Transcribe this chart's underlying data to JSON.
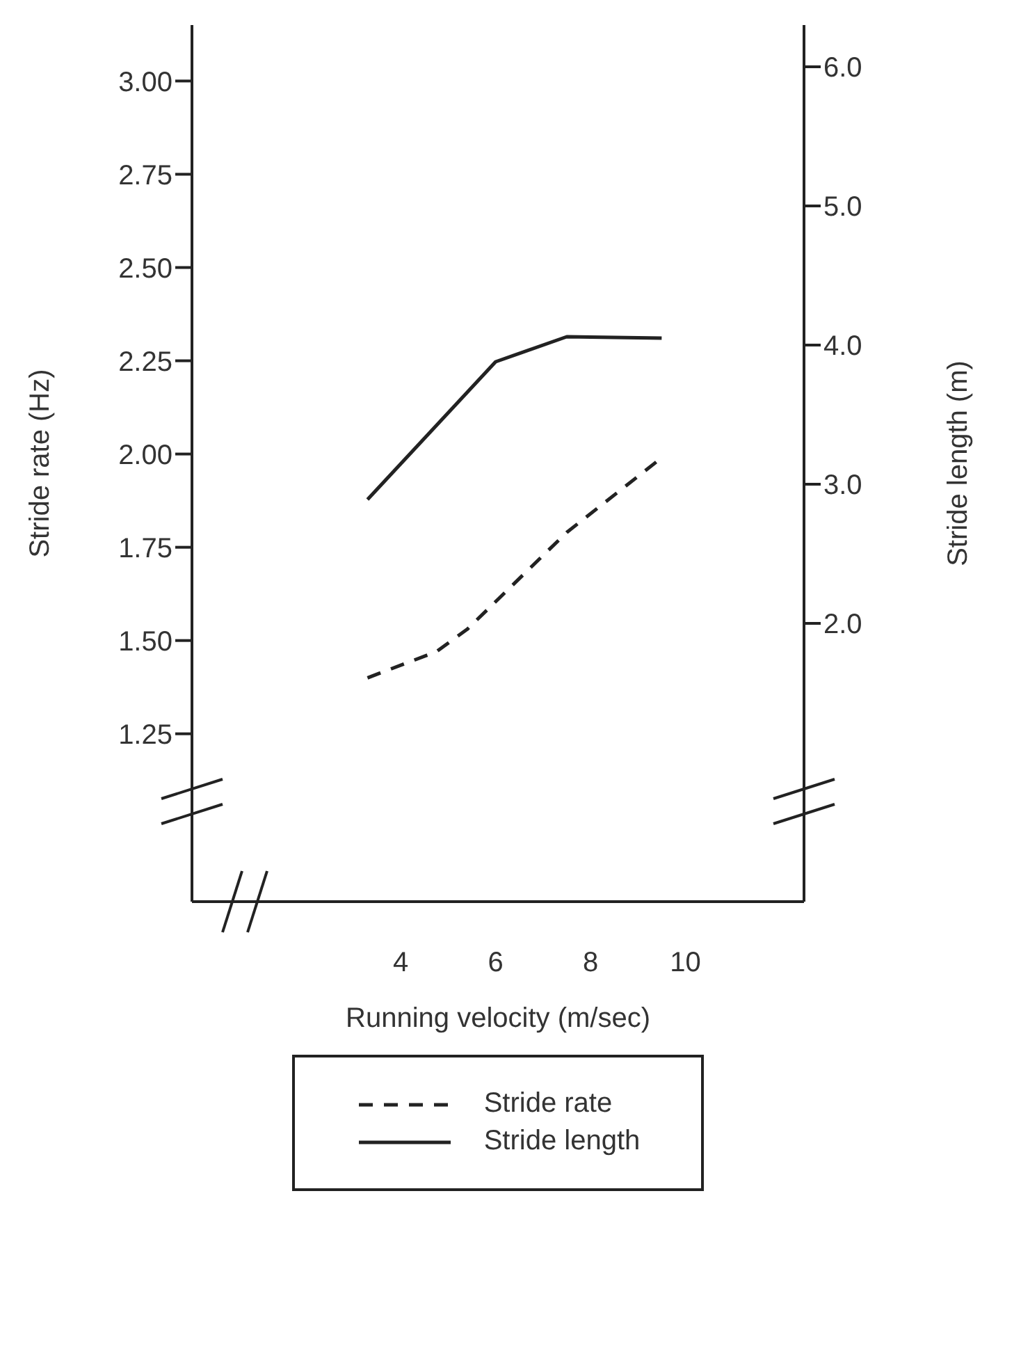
{
  "chart_data": {
    "type": "line",
    "xlabel": "Running velocity (m/sec)",
    "ylabel": "Stride rate (Hz)",
    "y2label": "Stride length (m)",
    "xlim": [
      -0.4,
      12.5
    ],
    "xticks": [
      4,
      6,
      8,
      10
    ],
    "ylim": [
      0.8,
      3.15
    ],
    "yticks": [
      1.25,
      {
        "value": 1.5,
        "label": "1.50"
      },
      1.75,
      {
        "value": 2,
        "label": "2.00"
      },
      2.25,
      {
        "value": 2.5,
        "label": "2.50"
      },
      2.75,
      {
        "value": 3,
        "label": "3.00"
      }
    ],
    "y2lim": [
      0,
      6.3
    ],
    "y2ticks": [
      {
        "value": 2,
        "label": "2.0"
      },
      {
        "value": 3,
        "label": "3.0"
      },
      {
        "value": 4,
        "label": "4.0"
      },
      {
        "value": 5,
        "label": "5.0"
      },
      {
        "value": 6,
        "label": "6.0"
      }
    ],
    "grid": false,
    "legend": "bottom",
    "marker": "none",
    "series": [
      {
        "name": "Stride rate",
        "color": "#222222",
        "line_style": "dashed",
        "x": [
          3.3,
          4.75,
          5.4,
          7.5,
          9.4
        ],
        "values": [
          1.4,
          1.47,
          1.53,
          1.79,
          1.98
        ]
      },
      {
        "name": "Stride length",
        "color": "#222222",
        "line_style": "solid",
        "axis": "y2",
        "x": [
          3.3,
          6.0,
          7.5,
          9.5
        ],
        "values": [
          2.89,
          3.88,
          4.06,
          4.05
        ]
      }
    ]
  }
}
